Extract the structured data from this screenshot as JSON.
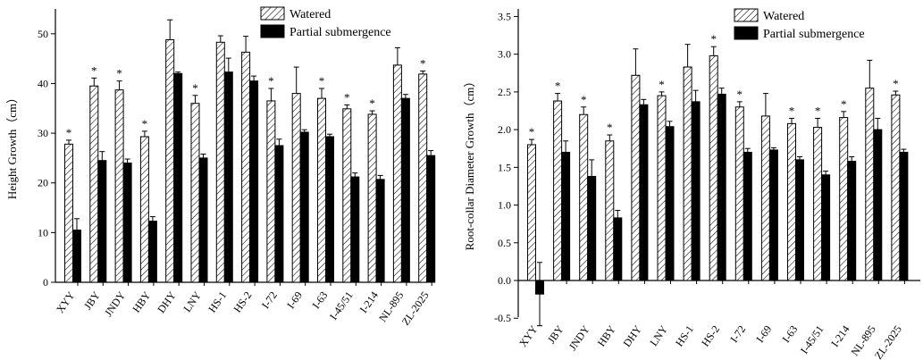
{
  "chart_data": [
    {
      "type": "bar",
      "ylabel": "Height Growth（cm）",
      "ylim": [
        0,
        55
      ],
      "yticks": [
        0,
        10,
        20,
        30,
        40,
        50
      ],
      "categories": [
        "XYY",
        "JBY",
        "JNDY",
        "HBY",
        "DHY",
        "LNY",
        "HS-1",
        "HS-2",
        "I-72",
        "I-69",
        "I-63",
        "I-45/51",
        "I-214",
        "NL-895",
        "ZL-2025"
      ],
      "legend_position": "top-right",
      "grid": false,
      "series": [
        {
          "name": "Watered",
          "pattern": "hatched",
          "values": [
            27.8,
            39.5,
            38.7,
            29.3,
            48.8,
            36.0,
            48.3,
            46.3,
            36.5,
            38.0,
            37.0,
            34.9,
            33.8,
            43.7,
            41.9
          ],
          "errors": [
            0.8,
            1.6,
            1.8,
            1.1,
            4.0,
            1.6,
            1.3,
            3.2,
            2.5,
            5.3,
            2.0,
            0.8,
            0.7,
            3.5,
            0.6
          ]
        },
        {
          "name": "Partial submergence",
          "pattern": "solid",
          "color": "#000000",
          "values": [
            10.5,
            24.5,
            24.0,
            12.3,
            42.0,
            25.0,
            42.3,
            40.5,
            27.5,
            30.2,
            29.3,
            21.2,
            20.7,
            37.0,
            25.5
          ],
          "errors": [
            2.3,
            1.8,
            0.8,
            0.9,
            0.3,
            0.8,
            2.8,
            1.0,
            1.3,
            0.5,
            0.5,
            0.8,
            0.8,
            0.8,
            1.0
          ]
        }
      ],
      "significant": [
        true,
        true,
        true,
        true,
        false,
        true,
        false,
        false,
        true,
        false,
        true,
        true,
        true,
        false,
        true
      ],
      "annotation": "*"
    },
    {
      "type": "bar",
      "ylabel": "Root-collar Diameter Growth（cm）",
      "ylim": [
        -0.5,
        3.6
      ],
      "yticks": [
        -0.5,
        0.0,
        0.5,
        1.0,
        1.5,
        2.0,
        2.5,
        3.0,
        3.5
      ],
      "categories": [
        "XYY",
        "JBY",
        "JNDY",
        "HBY",
        "DHY",
        "LNY",
        "HS-1",
        "HS-2",
        "I-72",
        "I-69",
        "I-63",
        "I-45/51",
        "I-214",
        "NL-895",
        "ZL-2025"
      ],
      "legend_position": "top-right",
      "grid": false,
      "series": [
        {
          "name": "Watered",
          "pattern": "hatched",
          "values": [
            1.8,
            2.38,
            2.2,
            1.85,
            2.72,
            2.45,
            2.83,
            2.98,
            2.3,
            2.18,
            2.08,
            2.03,
            2.16,
            2.55,
            2.46
          ],
          "errors": [
            0.07,
            0.1,
            0.1,
            0.08,
            0.35,
            0.05,
            0.3,
            0.12,
            0.07,
            0.3,
            0.07,
            0.12,
            0.08,
            0.37,
            0.05
          ]
        },
        {
          "name": "Partial submergence",
          "pattern": "solid",
          "color": "#000000",
          "values": [
            -0.18,
            1.7,
            1.38,
            0.83,
            2.33,
            2.04,
            2.37,
            2.47,
            1.7,
            1.73,
            1.6,
            1.4,
            1.58,
            2.0,
            1.7
          ],
          "errors": [
            0.42,
            0.15,
            0.22,
            0.1,
            0.07,
            0.07,
            0.15,
            0.08,
            0.05,
            0.03,
            0.04,
            0.05,
            0.06,
            0.15,
            0.04
          ]
        }
      ],
      "significant": [
        true,
        true,
        true,
        true,
        false,
        true,
        false,
        true,
        true,
        false,
        true,
        true,
        true,
        false,
        true
      ],
      "annotation": "*"
    }
  ]
}
